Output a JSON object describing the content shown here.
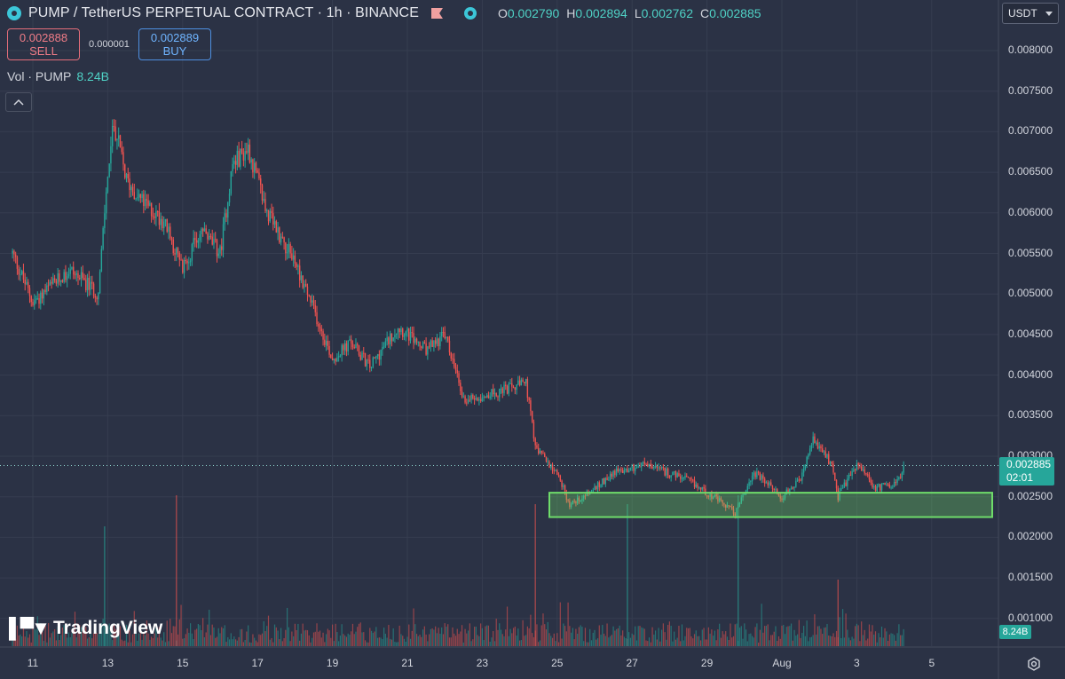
{
  "header": {
    "symbol_title": "PUMP / TetherUS PERPETUAL CONTRACT · 1h · BINANCE",
    "ohlc": [
      {
        "key": "O",
        "value": "0.002790"
      },
      {
        "key": "H",
        "value": "0.002894"
      },
      {
        "key": "L",
        "value": "0.002762"
      },
      {
        "key": "C",
        "value": "0.002885"
      }
    ]
  },
  "trade": {
    "sell_price": "0.002888",
    "sell_label": "SELL",
    "spread": "0.000001",
    "buy_price": "0.002889",
    "buy_label": "BUY"
  },
  "volume_legend": {
    "label": "Vol · PUMP",
    "value": "8.24B"
  },
  "currency_selector": "USDT",
  "price_tag": {
    "price": "0.002885",
    "countdown": "02:01"
  },
  "volume_tag": "8.24B",
  "watermark": "TradingView",
  "icons": [
    "logo-icon",
    "flag-icon",
    "market-status-icon",
    "collapse-icon",
    "chevron-down-icon",
    "settings-icon"
  ],
  "colors": {
    "background": "#2b3245",
    "up": "#26a69a",
    "down": "#ef5350",
    "support_zone": "#6fdc6a"
  },
  "chart_data": {
    "type": "candlestick",
    "timeframe": "1h",
    "y_ticks": [
      "0.008000",
      "0.007500",
      "0.007000",
      "0.006500",
      "0.006000",
      "0.005500",
      "0.005000",
      "0.004500",
      "0.004000",
      "0.003500",
      "0.003000",
      "0.002500",
      "0.002000",
      "0.001500",
      "0.001000"
    ],
    "ylim": [
      0.00088,
      0.0085
    ],
    "x_ticks": [
      "11",
      "13",
      "15",
      "17",
      "19",
      "21",
      "23",
      "25",
      "27",
      "29",
      "Aug",
      "3",
      "5"
    ],
    "grid": true,
    "support_zone": {
      "low": 0.00225,
      "high": 0.00255
    },
    "last_price": 0.002885,
    "close_path": [
      {
        "x": "Jul 10 11:00",
        "y": 0.0055
      },
      {
        "x": "Jul 11 00:00",
        "y": 0.0049
      },
      {
        "x": "Jul 12 00:00",
        "y": 0.0053
      },
      {
        "x": "Jul 12 18:00",
        "y": 0.005
      },
      {
        "x": "Jul 13 00:00",
        "y": 0.0065
      },
      {
        "x": "Jul 13 04:00",
        "y": 0.0071
      },
      {
        "x": "Jul 13 12:00",
        "y": 0.0064
      },
      {
        "x": "Jul 14 00:00",
        "y": 0.0061
      },
      {
        "x": "Jul 14 12:00",
        "y": 0.0059
      },
      {
        "x": "Jul 15 00:00",
        "y": 0.0053
      },
      {
        "x": "Jul 15 12:00",
        "y": 0.0058
      },
      {
        "x": "Jul 16 00:00",
        "y": 0.0055
      },
      {
        "x": "Jul 16 08:00",
        "y": 0.0066
      },
      {
        "x": "Jul 16 18:00",
        "y": 0.0068
      },
      {
        "x": "Jul 17 06:00",
        "y": 0.006
      },
      {
        "x": "Jul 18 00:00",
        "y": 0.0054
      },
      {
        "x": "Jul 18 12:00",
        "y": 0.0048
      },
      {
        "x": "Jul 19 00:00",
        "y": 0.0042
      },
      {
        "x": "Jul 19 12:00",
        "y": 0.0044
      },
      {
        "x": "Jul 20 00:00",
        "y": 0.0041
      },
      {
        "x": "Jul 20 18:00",
        "y": 0.0046
      },
      {
        "x": "Jul 21 12:00",
        "y": 0.0043
      },
      {
        "x": "Jul 22 00:00",
        "y": 0.0045
      },
      {
        "x": "Jul 22 12:00",
        "y": 0.0037
      },
      {
        "x": "Jul 23 12:00",
        "y": 0.0038
      },
      {
        "x": "Jul 24 04:00",
        "y": 0.0039
      },
      {
        "x": "Jul 24 10:00",
        "y": 0.0031
      },
      {
        "x": "Jul 25 00:00",
        "y": 0.0028
      },
      {
        "x": "Jul 25 08:00",
        "y": 0.0024
      },
      {
        "x": "Jul 26 00:00",
        "y": 0.0026
      },
      {
        "x": "Jul 26 12:00",
        "y": 0.0028
      },
      {
        "x": "Jul 27 08:00",
        "y": 0.0029
      },
      {
        "x": "Jul 28 12:00",
        "y": 0.0027
      },
      {
        "x": "Jul 29 04:00",
        "y": 0.0025
      },
      {
        "x": "Jul 29 18:00",
        "y": 0.0023
      },
      {
        "x": "Jul 30 06:00",
        "y": 0.0028
      },
      {
        "x": "Jul 31 00:00",
        "y": 0.0025
      },
      {
        "x": "Jul 31 12:00",
        "y": 0.0027
      },
      {
        "x": "Jul 31 20:00",
        "y": 0.0032
      },
      {
        "x": "Aug 01 08:00",
        "y": 0.0029
      },
      {
        "x": "Aug 01 12:00",
        "y": 0.0025
      },
      {
        "x": "Aug 02 00:00",
        "y": 0.0029
      },
      {
        "x": "Aug 02 12:00",
        "y": 0.0026
      },
      {
        "x": "Aug 03 04:00",
        "y": 0.0027
      },
      {
        "x": "Aug 03 06:00",
        "y": 0.0029
      }
    ]
  }
}
